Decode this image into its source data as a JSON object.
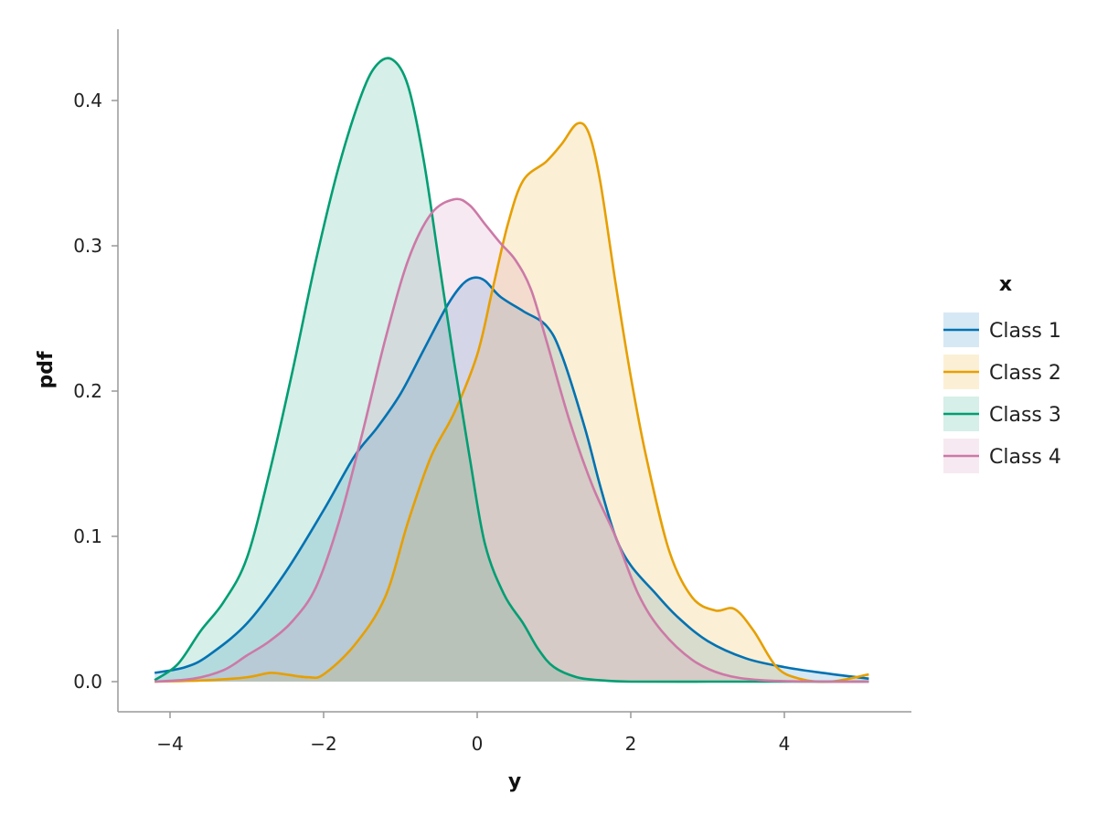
{
  "chart_data": {
    "type": "area",
    "xlabel": "y",
    "ylabel": "pdf",
    "xlim": [
      -4.2,
      5.1
    ],
    "ylim": [
      0,
      0.43
    ],
    "x_ticks": [
      -4,
      -2,
      0,
      2,
      4
    ],
    "x_tick_labels": [
      "−4",
      "−2",
      "0",
      "2",
      "4"
    ],
    "y_ticks": [
      0.0,
      0.1,
      0.2,
      0.3,
      0.4
    ],
    "y_tick_labels": [
      "0.0",
      "0.1",
      "0.2",
      "0.3",
      "0.4"
    ],
    "grid": false,
    "legend": {
      "title": "x",
      "placement": "right"
    },
    "series": [
      {
        "name": "Class 1",
        "color": "#0072B2",
        "fill": "#cfe4f0",
        "points": [
          [
            -4.2,
            0.006
          ],
          [
            -3.8,
            0.01
          ],
          [
            -3.5,
            0.018
          ],
          [
            -3.0,
            0.04
          ],
          [
            -2.5,
            0.075
          ],
          [
            -2.0,
            0.118
          ],
          [
            -1.6,
            0.155
          ],
          [
            -1.3,
            0.175
          ],
          [
            -1.0,
            0.198
          ],
          [
            -0.7,
            0.228
          ],
          [
            -0.4,
            0.258
          ],
          [
            -0.2,
            0.273
          ],
          [
            -0.05,
            0.278
          ],
          [
            0.1,
            0.276
          ],
          [
            0.3,
            0.265
          ],
          [
            0.6,
            0.255
          ],
          [
            0.9,
            0.245
          ],
          [
            1.1,
            0.225
          ],
          [
            1.4,
            0.175
          ],
          [
            1.6,
            0.135
          ],
          [
            1.8,
            0.1
          ],
          [
            2.0,
            0.08
          ],
          [
            2.3,
            0.062
          ],
          [
            2.6,
            0.045
          ],
          [
            3.0,
            0.028
          ],
          [
            3.5,
            0.016
          ],
          [
            4.0,
            0.01
          ],
          [
            4.5,
            0.006
          ],
          [
            5.1,
            0.002
          ]
        ]
      },
      {
        "name": "Class 2",
        "color": "#E69F00",
        "fill": "#faeed2",
        "points": [
          [
            -4.2,
            0.0
          ],
          [
            -3.5,
            0.001
          ],
          [
            -3.0,
            0.003
          ],
          [
            -2.7,
            0.006
          ],
          [
            -2.5,
            0.005
          ],
          [
            -2.2,
            0.003
          ],
          [
            -2.0,
            0.005
          ],
          [
            -1.6,
            0.025
          ],
          [
            -1.2,
            0.058
          ],
          [
            -0.9,
            0.11
          ],
          [
            -0.6,
            0.155
          ],
          [
            -0.3,
            0.185
          ],
          [
            0.0,
            0.225
          ],
          [
            0.2,
            0.27
          ],
          [
            0.4,
            0.315
          ],
          [
            0.6,
            0.345
          ],
          [
            0.9,
            0.358
          ],
          [
            1.1,
            0.37
          ],
          [
            1.3,
            0.384
          ],
          [
            1.45,
            0.378
          ],
          [
            1.6,
            0.345
          ],
          [
            1.8,
            0.275
          ],
          [
            2.0,
            0.21
          ],
          [
            2.2,
            0.155
          ],
          [
            2.5,
            0.09
          ],
          [
            2.8,
            0.058
          ],
          [
            3.1,
            0.049
          ],
          [
            3.35,
            0.05
          ],
          [
            3.6,
            0.035
          ],
          [
            3.9,
            0.01
          ],
          [
            4.2,
            0.002
          ],
          [
            4.6,
            0.0
          ],
          [
            5.1,
            0.005
          ]
        ]
      },
      {
        "name": "Class 3",
        "color": "#009E73",
        "fill": "#d6eee7",
        "points": [
          [
            -4.2,
            0.001
          ],
          [
            -3.9,
            0.012
          ],
          [
            -3.6,
            0.035
          ],
          [
            -3.3,
            0.055
          ],
          [
            -3.0,
            0.085
          ],
          [
            -2.7,
            0.145
          ],
          [
            -2.4,
            0.215
          ],
          [
            -2.1,
            0.29
          ],
          [
            -1.8,
            0.355
          ],
          [
            -1.5,
            0.405
          ],
          [
            -1.3,
            0.425
          ],
          [
            -1.1,
            0.428
          ],
          [
            -0.9,
            0.41
          ],
          [
            -0.7,
            0.36
          ],
          [
            -0.5,
            0.29
          ],
          [
            -0.3,
            0.22
          ],
          [
            -0.1,
            0.155
          ],
          [
            0.1,
            0.095
          ],
          [
            0.35,
            0.06
          ],
          [
            0.6,
            0.04
          ],
          [
            0.8,
            0.022
          ],
          [
            1.0,
            0.01
          ],
          [
            1.3,
            0.003
          ],
          [
            1.6,
            0.001
          ],
          [
            2.0,
            0.0
          ],
          [
            3.0,
            0.0
          ],
          [
            4.0,
            0.0
          ],
          [
            5.1,
            0.0
          ]
        ]
      },
      {
        "name": "Class 4",
        "color": "#CC79A7",
        "fill": "#f4e4ee",
        "points": [
          [
            -4.2,
            0.0
          ],
          [
            -3.7,
            0.002
          ],
          [
            -3.3,
            0.008
          ],
          [
            -3.0,
            0.018
          ],
          [
            -2.7,
            0.028
          ],
          [
            -2.4,
            0.042
          ],
          [
            -2.1,
            0.065
          ],
          [
            -1.8,
            0.11
          ],
          [
            -1.5,
            0.17
          ],
          [
            -1.2,
            0.235
          ],
          [
            -0.9,
            0.29
          ],
          [
            -0.6,
            0.322
          ],
          [
            -0.3,
            0.332
          ],
          [
            -0.1,
            0.328
          ],
          [
            0.1,
            0.315
          ],
          [
            0.3,
            0.302
          ],
          [
            0.5,
            0.29
          ],
          [
            0.7,
            0.27
          ],
          [
            0.9,
            0.235
          ],
          [
            1.2,
            0.18
          ],
          [
            1.5,
            0.135
          ],
          [
            1.8,
            0.1
          ],
          [
            2.1,
            0.06
          ],
          [
            2.4,
            0.035
          ],
          [
            2.8,
            0.015
          ],
          [
            3.2,
            0.005
          ],
          [
            3.7,
            0.001
          ],
          [
            4.5,
            0.0
          ],
          [
            5.1,
            0.0
          ]
        ]
      }
    ]
  }
}
